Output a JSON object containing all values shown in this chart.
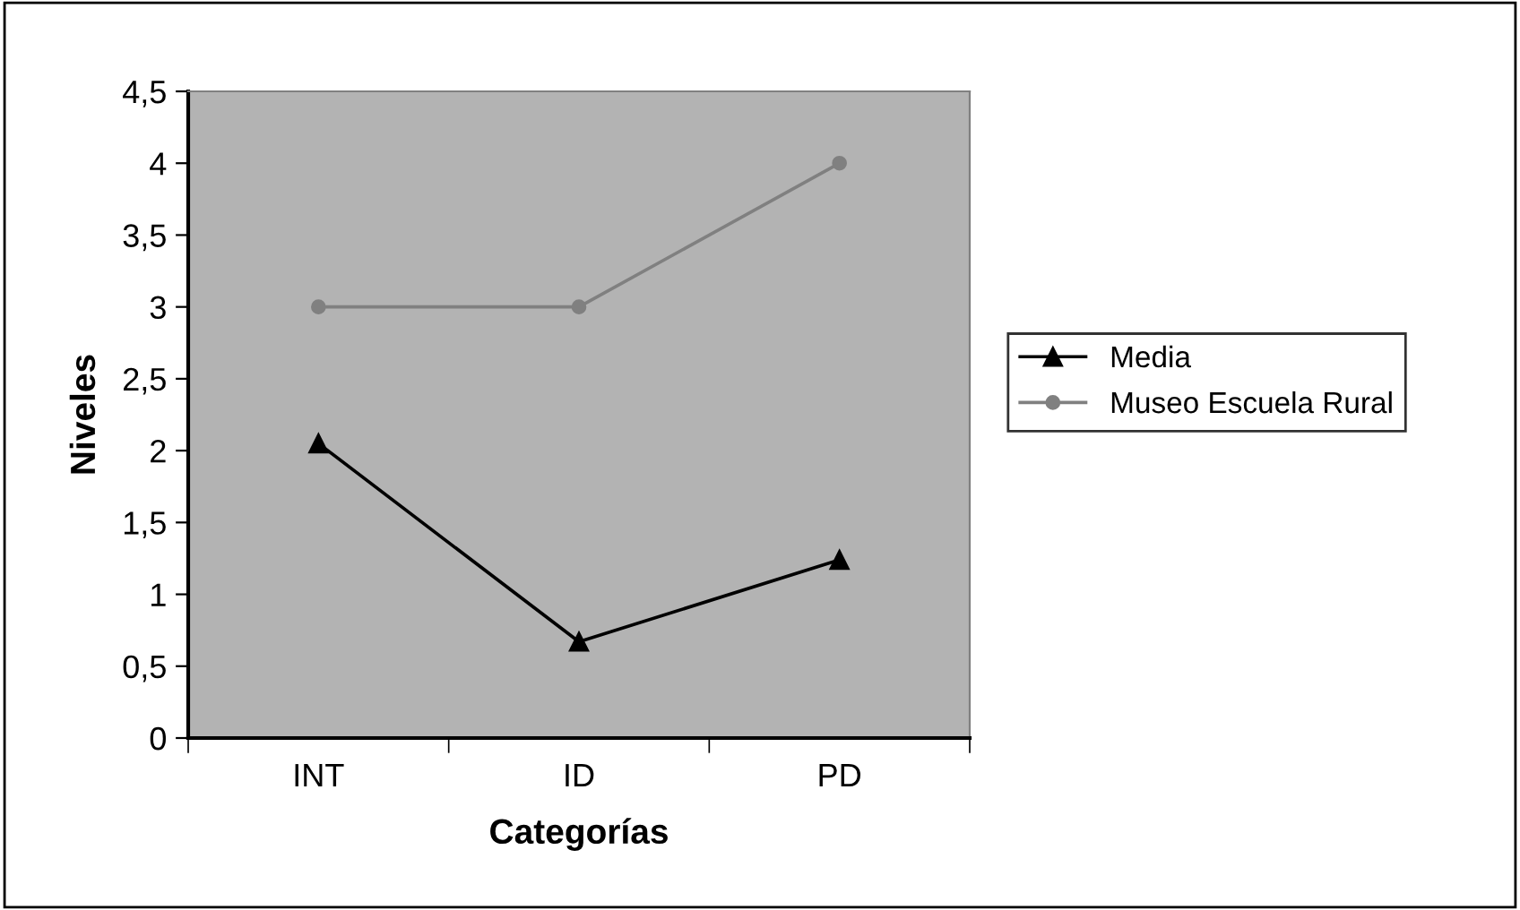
{
  "chart_data": {
    "type": "line",
    "xlabel": "Categorías",
    "ylabel": "Niveles",
    "categories": [
      "INT",
      "ID",
      "PD"
    ],
    "series": [
      {
        "name": "Media",
        "color": "#000000",
        "values": [
          2.05,
          0.67,
          1.24
        ],
        "marker": "triangle"
      },
      {
        "name": "Museo Escuela Rural",
        "color": "#808080",
        "values": [
          3,
          3,
          4
        ],
        "marker": "circle"
      }
    ],
    "ylim": [
      0,
      4.5
    ],
    "yticks": [
      0,
      {
        "value": 0.5,
        "label": "0,5"
      },
      1,
      {
        "value": 1.5,
        "label": "1,5"
      },
      2,
      {
        "value": 2.5,
        "label": "2,5"
      },
      3,
      {
        "value": 3.5,
        "label": "3,5"
      },
      4,
      {
        "value": 4.5,
        "label": "4,5"
      }
    ],
    "legend": "right",
    "line_style": "solid"
  }
}
